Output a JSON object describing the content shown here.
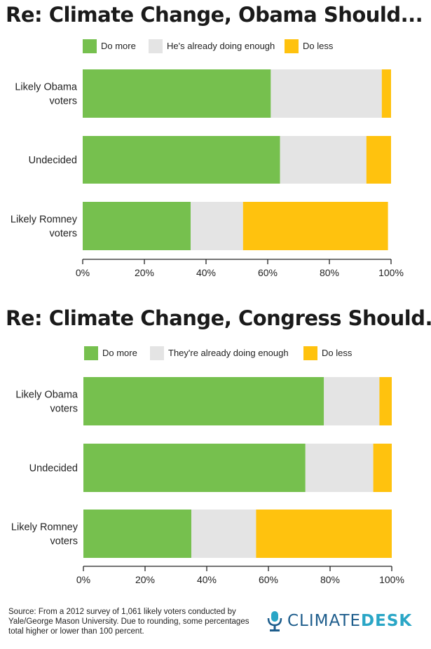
{
  "colors": {
    "do_more": "#76c04e",
    "enough": "#e4e4e4",
    "do_less": "#ffc20e",
    "axis": "#222222"
  },
  "chart_data": [
    {
      "type": "bar",
      "orientation": "horizontal",
      "stacked": true,
      "title": "Re: Climate Change, Obama Should...",
      "categories": [
        "Likely Obama voters",
        "Undecided",
        "Likely Romney voters"
      ],
      "series": [
        {
          "name": "Do more",
          "values": [
            61,
            64,
            35
          ]
        },
        {
          "name": "He's already doing enough",
          "values": [
            36,
            28,
            17
          ]
        },
        {
          "name": "Do less",
          "values": [
            3,
            8,
            47
          ]
        }
      ],
      "xticks": [
        "0%",
        "20%",
        "40%",
        "60%",
        "80%",
        "100%"
      ],
      "xlim": [
        0,
        100
      ],
      "legend_position": "top"
    },
    {
      "type": "bar",
      "orientation": "horizontal",
      "stacked": true,
      "title": "Re: Climate Change, Congress Should...",
      "categories": [
        "Likely Obama voters",
        "Undecided",
        "Likely Romney voters"
      ],
      "series": [
        {
          "name": "Do more",
          "values": [
            78,
            72,
            35
          ]
        },
        {
          "name": "They're already doing enough",
          "values": [
            18,
            22,
            21
          ]
        },
        {
          "name": "Do less",
          "values": [
            4,
            6,
            44
          ]
        }
      ],
      "xticks": [
        "0%",
        "20%",
        "40%",
        "60%",
        "80%",
        "100%"
      ],
      "xlim": [
        0,
        100
      ],
      "legend_position": "top"
    }
  ],
  "source": "Source: From a 2012 survey of 1,061 likely voters conducted by Yale/George Mason University. Due to rounding, some percentages total higher or lower than 100 percent.",
  "logo": {
    "part1": "CLIMATE",
    "part2": "DESK",
    "icon": "microphone-icon"
  }
}
